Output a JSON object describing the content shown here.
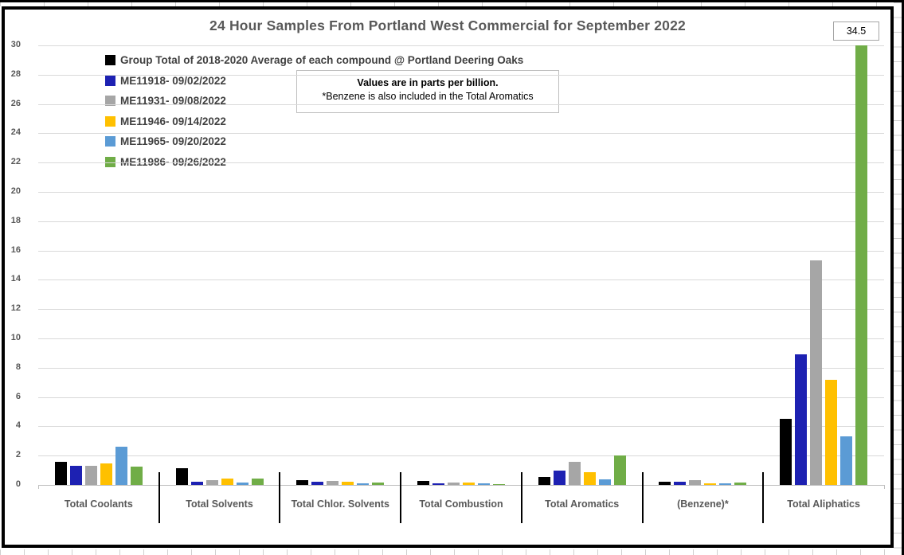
{
  "chart_data": {
    "type": "bar",
    "title": "24 Hour Samples From Portland West Commercial for September 2022",
    "annotation": {
      "line1": "Values are in parts per billion.",
      "line2": "*Benzene is also included in the Total Aromatics"
    },
    "categories": [
      "Total Coolants",
      "Total Solvents",
      "Total Chlor. Solvents",
      "Total Combustion",
      "Total Aromatics",
      "(Benzene)*",
      "Total Aliphatics"
    ],
    "series": [
      {
        "name": "Group Total of 2018-2020 Average of each compound @ Portland Deering Oaks",
        "color": "#000000",
        "values": [
          1.55,
          1.15,
          0.35,
          0.25,
          0.55,
          0.2,
          4.5
        ]
      },
      {
        "name": "ME11918- 09/02/2022",
        "color": "#1d21b2",
        "values": [
          1.3,
          0.2,
          0.2,
          0.1,
          1.0,
          0.2,
          8.9
        ]
      },
      {
        "name": "ME11931- 09/08/2022",
        "color": "#a6a6a6",
        "values": [
          1.3,
          0.3,
          0.25,
          0.15,
          1.55,
          0.3,
          15.3
        ]
      },
      {
        "name": "ME11946- 09/14/2022",
        "color": "#ffc000",
        "values": [
          1.45,
          0.45,
          0.2,
          0.15,
          0.85,
          0.1,
          7.2
        ]
      },
      {
        "name": "ME11965- 09/20/2022",
        "color": "#5b9bd5",
        "values": [
          2.6,
          0.15,
          0.1,
          0.1,
          0.4,
          0.1,
          3.3
        ]
      },
      {
        "name": "ME11986- 09/26/2022",
        "color": "#70ad47",
        "values": [
          1.25,
          0.45,
          0.15,
          0.05,
          2.0,
          0.15,
          34.5
        ]
      }
    ],
    "ylim": [
      0,
      30
    ],
    "ytick_step": 2,
    "grid": true,
    "legend_position": "top-left-inside",
    "data_label": {
      "text": "34.5",
      "series": "ME11986- 09/26/2022",
      "category": "Total Aliphatics"
    }
  }
}
